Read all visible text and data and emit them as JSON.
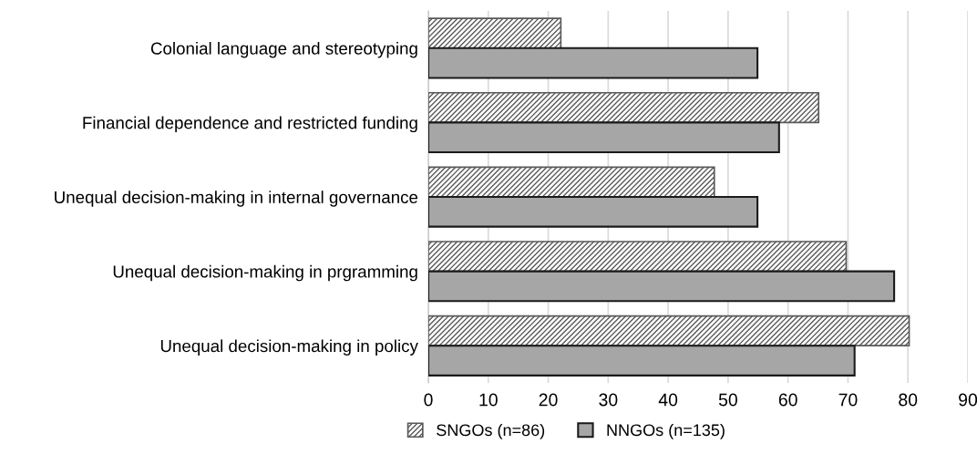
{
  "chart_data": {
    "type": "bar",
    "orientation": "horizontal",
    "categories": [
      "Colonial language and stereotyping",
      "Financial dependence and restricted funding",
      "Unequal decision-making in internal governance",
      "Unequal decision-making in prgramming",
      "Unequal decision-making in policy"
    ],
    "series": [
      {
        "name": "SNGOs (n=86)",
        "color": "#595959",
        "values": [
          22.1,
          65.1,
          47.7,
          69.7,
          80.2
        ]
      },
      {
        "name": "NNGOs (n=135)",
        "color": "#a6a6a6",
        "values": [
          54.9,
          58.5,
          54.9,
          77.7,
          71.1
        ]
      }
    ],
    "xlim": [
      0,
      90
    ],
    "xticks": [
      0,
      10,
      20,
      30,
      40,
      50,
      60,
      70,
      80,
      90
    ],
    "grid": "x",
    "legend": "bottom"
  }
}
